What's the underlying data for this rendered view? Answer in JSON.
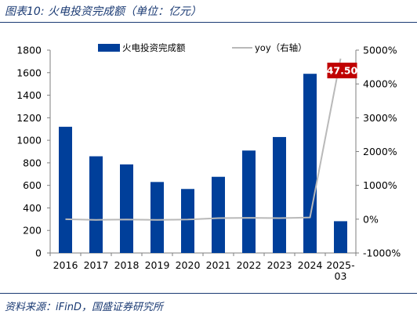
{
  "header": {
    "title": "图表10:  火电投资完成额（单位：亿元）"
  },
  "footer": {
    "source": "资料来源：iFinD，国盛证券研究所"
  },
  "colors": {
    "bar": "#003f9a",
    "line": "#b9b9b9",
    "callout_bg": "#c00000",
    "callout_text": "#ffffff",
    "title_text": "#1a3a73"
  },
  "chart_data": {
    "type": "bar",
    "categories": [
      "2016",
      "2017",
      "2018",
      "2019",
      "2020",
      "2021",
      "2022",
      "2023",
      "2024",
      "2025-03"
    ],
    "series": [
      {
        "name": "火电投资完成额",
        "type": "bar",
        "axis": "left",
        "values": [
          1120,
          858,
          786,
          630,
          568,
          676,
          909,
          1029,
          1590,
          282
        ]
      },
      {
        "name": "yoy（右轴）",
        "type": "line",
        "axis": "right",
        "values": [
          0,
          -20,
          -10,
          -20,
          -10,
          30,
          40,
          30,
          50,
          4750
        ]
      }
    ],
    "title": "",
    "xlabel": "",
    "ylabel": "",
    "ylim": [
      0,
      1800
    ],
    "yticks": [
      "0",
      "200",
      "400",
      "600",
      "800",
      "1000",
      "1200",
      "1400",
      "1600",
      "1800"
    ],
    "y2lim": [
      -1000,
      5000
    ],
    "y2ticks": [
      "-1000%",
      "0%",
      "1000%",
      "2000%",
      "3000%",
      "4000%",
      "5000%"
    ],
    "annotation": "47.50",
    "legend_position": "top",
    "grid": false
  }
}
